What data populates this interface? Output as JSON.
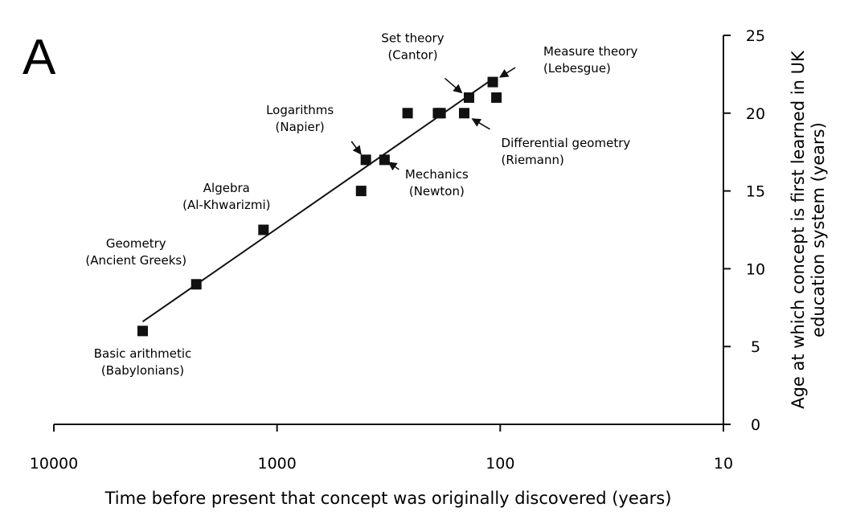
{
  "panel_letter": "A",
  "chart_data": {
    "type": "scatter",
    "x_scale": "log",
    "x_reversed": true,
    "xlabel": "Time before present that concept was originally discovered (years)",
    "ylabel": "Age at which concept is first learned in UK education system (years)",
    "xlim": [
      10000,
      10
    ],
    "ylim": [
      0,
      25
    ],
    "x_ticks": [
      10000,
      1000,
      100,
      10
    ],
    "x_tick_labels": [
      "10000",
      "1000",
      "100",
      "10"
    ],
    "y_ticks": [
      0,
      5,
      10,
      15,
      20,
      25
    ],
    "y_tick_labels": [
      "0",
      "5",
      "10",
      "15",
      "20",
      "25"
    ],
    "y_axis_position": "right",
    "grid": false,
    "legend": "none",
    "marker": "square",
    "marker_color": "#111111",
    "points": [
      {
        "x": 4000,
        "y": 6
      },
      {
        "x": 2300,
        "y": 9
      },
      {
        "x": 1150,
        "y": 12.5
      },
      {
        "x": 420,
        "y": 15
      },
      {
        "x": 400,
        "y": 17
      },
      {
        "x": 330,
        "y": 17
      },
      {
        "x": 260,
        "y": 20
      },
      {
        "x": 190,
        "y": 20
      },
      {
        "x": 185,
        "y": 20
      },
      {
        "x": 145,
        "y": 20
      },
      {
        "x": 138,
        "y": 21
      },
      {
        "x": 108,
        "y": 22
      },
      {
        "x": 104,
        "y": 21
      }
    ],
    "trendline": {
      "x": [
        4000,
        108
      ],
      "y": [
        6.6,
        22.2
      ]
    },
    "annotations": [
      {
        "lines": [
          "Basic arithmetic",
          "(Babylonians)"
        ],
        "x": 4000,
        "y": 6,
        "arrow": false
      },
      {
        "lines": [
          "Geometry",
          "(Ancient Greeks)"
        ],
        "x": 2300,
        "y": 9,
        "arrow": false
      },
      {
        "lines": [
          "Algebra",
          "(Al-Khwarizmi)"
        ],
        "x": 1150,
        "y": 12.5,
        "arrow": false
      },
      {
        "lines": [
          "Logarithms",
          "(Napier)"
        ],
        "x": 400,
        "y": 17,
        "arrow": true
      },
      {
        "lines": [
          "Mechanics",
          "(Newton)"
        ],
        "x": 330,
        "y": 17,
        "arrow": true
      },
      {
        "lines": [
          "Set theory",
          "(Cantor)"
        ],
        "x": 138,
        "y": 21,
        "arrow": true
      },
      {
        "lines": [
          "Measure theory",
          "(Lebesgue)"
        ],
        "x": 108,
        "y": 22,
        "arrow": true
      },
      {
        "lines": [
          "Differential geometry",
          "(Riemann)"
        ],
        "x": 145,
        "y": 20,
        "arrow": true
      }
    ]
  }
}
